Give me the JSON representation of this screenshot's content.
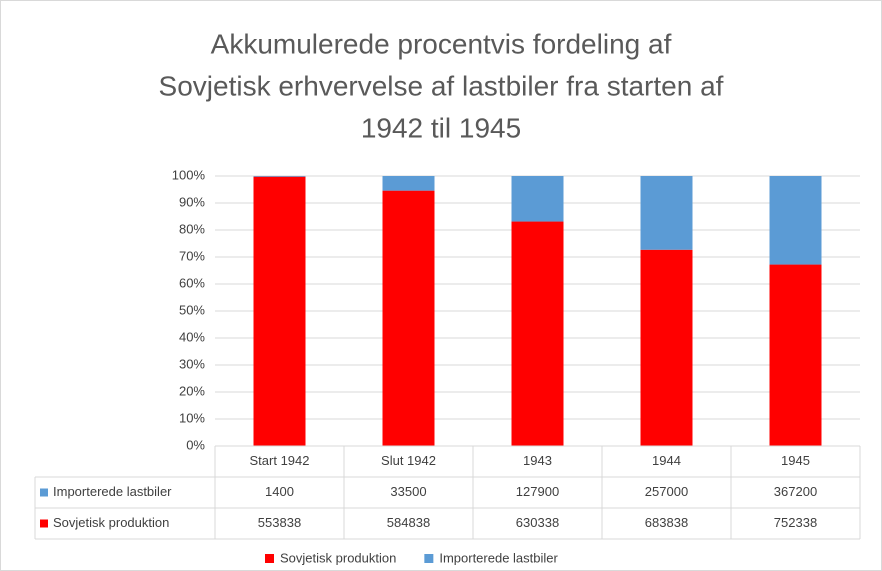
{
  "chart_data": {
    "type": "bar",
    "stacking": "percent",
    "title": [
      "Akkumulerede procentvis fordeling af",
      "Sovjetisk erhvervelse af lastbiler fra starten af",
      "1942 til 1945"
    ],
    "categories": [
      "Start 1942",
      "Slut 1942",
      "1943",
      "1944",
      "1945"
    ],
    "series": [
      {
        "name": "Importerede lastbiler",
        "color": "#5b9bd5",
        "values": [
          1400,
          33500,
          127900,
          257000,
          367200
        ]
      },
      {
        "name": "Sovjetisk produktion",
        "color": "#ff0000",
        "values": [
          553838,
          584838,
          630338,
          683838,
          752338
        ]
      }
    ],
    "ylim": [
      0,
      100
    ],
    "yticks": [
      {
        "value": 0,
        "label": "0%"
      },
      {
        "value": 10,
        "label": "10%"
      },
      {
        "value": 20,
        "label": "20%"
      },
      {
        "value": 30,
        "label": "30%"
      },
      {
        "value": 40,
        "label": "40%"
      },
      {
        "value": 50,
        "label": "50%"
      },
      {
        "value": 60,
        "label": "60%"
      },
      {
        "value": 70,
        "label": "70%"
      },
      {
        "value": 80,
        "label": "80%"
      },
      {
        "value": 90,
        "label": "90%"
      },
      {
        "value": 100,
        "label": "100%"
      }
    ],
    "grid": true
  }
}
